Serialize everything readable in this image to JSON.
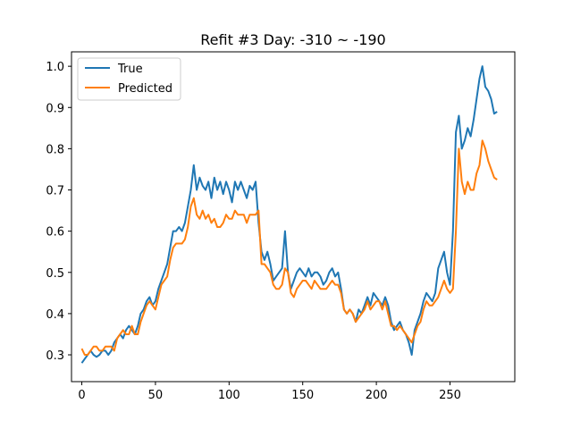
{
  "chart_data": {
    "type": "line",
    "title": "Refit #3 Day: -310 ~ -190",
    "xlabel": "",
    "ylabel": "",
    "xlim": [
      -7,
      294
    ],
    "ylim": [
      0.235,
      1.035
    ],
    "xticks": [
      0,
      50,
      100,
      150,
      200,
      250
    ],
    "yticks": [
      0.3,
      0.4,
      0.5,
      0.6,
      0.7,
      0.8,
      0.9,
      1.0
    ],
    "xtick_labels": [
      "0",
      "50",
      "100",
      "150",
      "200",
      "250"
    ],
    "ytick_labels": [
      "0.3",
      "0.4",
      "0.5",
      "0.6",
      "0.7",
      "0.8",
      "0.9",
      "1.0"
    ],
    "grid": false,
    "legend_position": "upper-left",
    "series": [
      {
        "name": "True",
        "color": "#1f77b4",
        "x": [
          0,
          2,
          4,
          6,
          8,
          10,
          12,
          14,
          16,
          18,
          20,
          22,
          24,
          26,
          28,
          30,
          32,
          34,
          36,
          38,
          40,
          42,
          44,
          46,
          48,
          50,
          52,
          54,
          56,
          58,
          60,
          62,
          64,
          66,
          68,
          70,
          72,
          74,
          76,
          78,
          80,
          82,
          84,
          86,
          88,
          90,
          92,
          94,
          96,
          98,
          100,
          102,
          104,
          106,
          108,
          110,
          112,
          114,
          116,
          118,
          120,
          122,
          124,
          126,
          128,
          130,
          132,
          134,
          136,
          138,
          140,
          142,
          144,
          146,
          148,
          150,
          152,
          154,
          156,
          158,
          160,
          162,
          164,
          166,
          168,
          170,
          172,
          174,
          176,
          178,
          180,
          182,
          184,
          186,
          188,
          190,
          192,
          194,
          196,
          198,
          200,
          202,
          204,
          206,
          208,
          210,
          212,
          214,
          216,
          218,
          220,
          222,
          224,
          226,
          228,
          230,
          232,
          234,
          236,
          238,
          240,
          242,
          244,
          246,
          248,
          250,
          252,
          254,
          256,
          258,
          260,
          262,
          264,
          266,
          268,
          270,
          272,
          274,
          276,
          278,
          280,
          282
        ],
        "y": [
          0.28,
          0.29,
          0.3,
          0.31,
          0.3,
          0.295,
          0.3,
          0.31,
          0.31,
          0.3,
          0.31,
          0.33,
          0.34,
          0.35,
          0.34,
          0.36,
          0.37,
          0.36,
          0.35,
          0.37,
          0.4,
          0.41,
          0.43,
          0.44,
          0.42,
          0.43,
          0.46,
          0.48,
          0.5,
          0.52,
          0.56,
          0.6,
          0.6,
          0.61,
          0.6,
          0.62,
          0.66,
          0.7,
          0.76,
          0.7,
          0.73,
          0.71,
          0.7,
          0.72,
          0.68,
          0.73,
          0.7,
          0.72,
          0.69,
          0.72,
          0.7,
          0.67,
          0.72,
          0.7,
          0.72,
          0.7,
          0.68,
          0.71,
          0.7,
          0.72,
          0.62,
          0.55,
          0.53,
          0.55,
          0.52,
          0.48,
          0.49,
          0.5,
          0.51,
          0.6,
          0.5,
          0.46,
          0.48,
          0.5,
          0.51,
          0.5,
          0.49,
          0.51,
          0.49,
          0.5,
          0.5,
          0.49,
          0.47,
          0.48,
          0.5,
          0.51,
          0.49,
          0.5,
          0.46,
          0.41,
          0.4,
          0.41,
          0.4,
          0.38,
          0.41,
          0.4,
          0.42,
          0.44,
          0.42,
          0.45,
          0.44,
          0.43,
          0.42,
          0.44,
          0.42,
          0.38,
          0.36,
          0.37,
          0.38,
          0.36,
          0.35,
          0.33,
          0.3,
          0.36,
          0.38,
          0.4,
          0.43,
          0.45,
          0.44,
          0.43,
          0.45,
          0.51,
          0.53,
          0.55,
          0.5,
          0.47,
          0.6,
          0.84,
          0.88,
          0.8,
          0.82,
          0.85,
          0.83,
          0.87,
          0.92,
          0.97,
          1.0,
          0.95,
          0.94,
          0.92,
          0.885,
          0.89
        ]
      },
      {
        "name": "Predicted",
        "color": "#ff7f0e",
        "x": [
          0,
          2,
          4,
          6,
          8,
          10,
          12,
          14,
          16,
          18,
          20,
          22,
          24,
          26,
          28,
          30,
          32,
          34,
          36,
          38,
          40,
          42,
          44,
          46,
          48,
          50,
          52,
          54,
          56,
          58,
          60,
          62,
          64,
          66,
          68,
          70,
          72,
          74,
          76,
          78,
          80,
          82,
          84,
          86,
          88,
          90,
          92,
          94,
          96,
          98,
          100,
          102,
          104,
          106,
          108,
          110,
          112,
          114,
          116,
          118,
          120,
          122,
          124,
          126,
          128,
          130,
          132,
          134,
          136,
          138,
          140,
          142,
          144,
          146,
          148,
          150,
          152,
          154,
          156,
          158,
          160,
          162,
          164,
          166,
          168,
          170,
          172,
          174,
          176,
          178,
          180,
          182,
          184,
          186,
          188,
          190,
          192,
          194,
          196,
          198,
          200,
          202,
          204,
          206,
          208,
          210,
          212,
          214,
          216,
          218,
          220,
          222,
          224,
          226,
          228,
          230,
          232,
          234,
          236,
          238,
          240,
          242,
          244,
          246,
          248,
          250,
          252,
          254,
          256,
          258,
          260,
          262,
          264,
          266,
          268,
          270,
          272,
          274,
          276,
          278,
          280,
          282
        ],
        "y": [
          0.315,
          0.3,
          0.3,
          0.31,
          0.32,
          0.32,
          0.31,
          0.31,
          0.32,
          0.32,
          0.32,
          0.31,
          0.34,
          0.35,
          0.36,
          0.35,
          0.35,
          0.37,
          0.35,
          0.35,
          0.38,
          0.4,
          0.42,
          0.43,
          0.42,
          0.41,
          0.44,
          0.47,
          0.48,
          0.49,
          0.53,
          0.56,
          0.57,
          0.57,
          0.57,
          0.58,
          0.61,
          0.66,
          0.68,
          0.64,
          0.63,
          0.65,
          0.63,
          0.64,
          0.62,
          0.63,
          0.61,
          0.61,
          0.62,
          0.64,
          0.63,
          0.63,
          0.65,
          0.64,
          0.64,
          0.64,
          0.62,
          0.64,
          0.64,
          0.64,
          0.65,
          0.52,
          0.52,
          0.51,
          0.5,
          0.47,
          0.46,
          0.46,
          0.47,
          0.51,
          0.5,
          0.45,
          0.44,
          0.46,
          0.47,
          0.48,
          0.48,
          0.47,
          0.46,
          0.48,
          0.47,
          0.46,
          0.46,
          0.46,
          0.47,
          0.48,
          0.47,
          0.47,
          0.45,
          0.41,
          0.4,
          0.41,
          0.4,
          0.38,
          0.39,
          0.4,
          0.41,
          0.43,
          0.41,
          0.42,
          0.43,
          0.43,
          0.41,
          0.43,
          0.4,
          0.37,
          0.37,
          0.36,
          0.37,
          0.36,
          0.35,
          0.34,
          0.33,
          0.35,
          0.37,
          0.38,
          0.41,
          0.43,
          0.42,
          0.42,
          0.43,
          0.44,
          0.46,
          0.48,
          0.46,
          0.45,
          0.46,
          0.6,
          0.8,
          0.72,
          0.69,
          0.72,
          0.7,
          0.7,
          0.74,
          0.76,
          0.82,
          0.8,
          0.77,
          0.75,
          0.73,
          0.725
        ]
      }
    ]
  }
}
